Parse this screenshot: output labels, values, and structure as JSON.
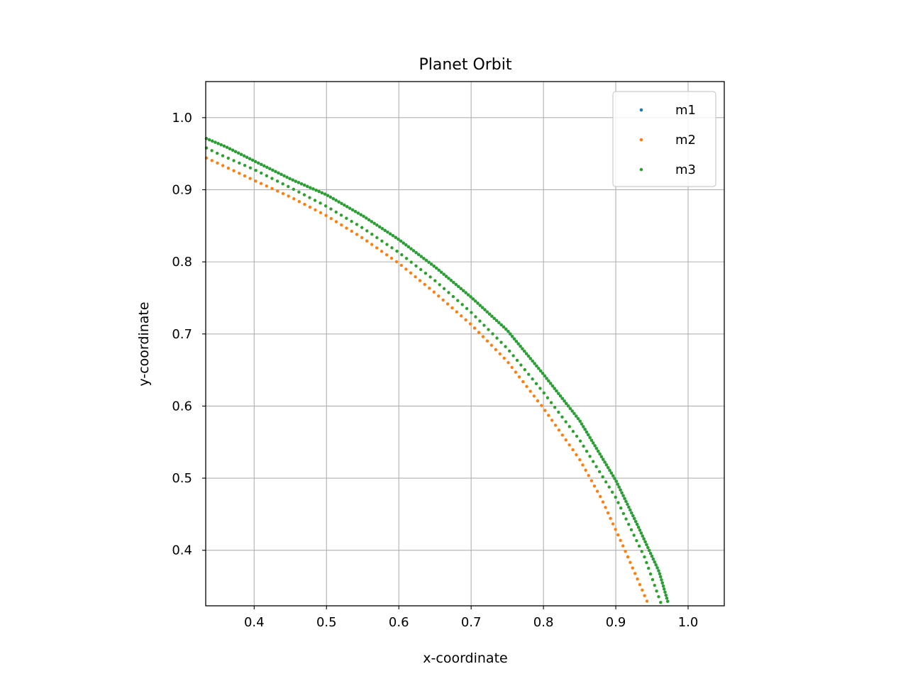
{
  "chart_data": {
    "type": "scatter",
    "title": "Planet Orbit",
    "xlabel": "x-coordinate",
    "ylabel": "y-coordinate",
    "xlim": [
      0.333,
      1.05
    ],
    "ylim": [
      0.323,
      1.05
    ],
    "xticks": [
      0.4,
      0.5,
      0.6,
      0.7,
      0.8,
      0.9,
      1.0
    ],
    "yticks": [
      0.4,
      0.5,
      0.6,
      0.7,
      0.8,
      0.9,
      1.0
    ],
    "grid": true,
    "legend_position": "top-right",
    "series": [
      {
        "name": "m1",
        "color": "#1f77b4",
        "x": [
          0.334,
          0.36,
          0.4,
          0.45,
          0.5,
          0.55,
          0.6,
          0.65,
          0.7,
          0.75,
          0.8,
          0.85,
          0.9,
          0.93,
          0.96,
          0.973
        ],
        "y": [
          0.971,
          0.96,
          0.94,
          0.915,
          0.893,
          0.864,
          0.831,
          0.793,
          0.751,
          0.705,
          0.644,
          0.58,
          0.497,
          0.435,
          0.37,
          0.325
        ]
      },
      {
        "name": "m2",
        "color": "#ff7f0e",
        "x": [
          0.334,
          0.36,
          0.4,
          0.45,
          0.5,
          0.55,
          0.6,
          0.65,
          0.7,
          0.75,
          0.8,
          0.85,
          0.88,
          0.91,
          0.93,
          0.945
        ],
        "y": [
          0.944,
          0.932,
          0.913,
          0.89,
          0.864,
          0.833,
          0.798,
          0.757,
          0.713,
          0.662,
          0.597,
          0.526,
          0.472,
          0.406,
          0.36,
          0.325
        ]
      },
      {
        "name": "m3",
        "color": "#2ca02c",
        "x": [
          0.334,
          0.36,
          0.4,
          0.45,
          0.5,
          0.55,
          0.6,
          0.65,
          0.7,
          0.75,
          0.8,
          0.85,
          0.9,
          0.93,
          0.96,
          0.973
        ],
        "y": [
          0.971,
          0.96,
          0.94,
          0.915,
          0.893,
          0.864,
          0.831,
          0.793,
          0.751,
          0.705,
          0.644,
          0.58,
          0.497,
          0.435,
          0.37,
          0.325
        ]
      },
      {
        "name": "m3",
        "color": "#2ca02c",
        "x": [
          0.334,
          0.35,
          0.4,
          0.45,
          0.5,
          0.55,
          0.6,
          0.65,
          0.7,
          0.75,
          0.8,
          0.85,
          0.9,
          0.94,
          0.963
        ],
        "y": [
          0.958,
          0.95,
          0.928,
          0.903,
          0.877,
          0.847,
          0.813,
          0.774,
          0.73,
          0.68,
          0.619,
          0.553,
          0.473,
          0.39,
          0.325
        ]
      }
    ]
  },
  "legend": {
    "items": [
      {
        "label": "m1",
        "color": "#1f77b4"
      },
      {
        "label": "m2",
        "color": "#ff7f0e"
      },
      {
        "label": "m3",
        "color": "#2ca02c"
      }
    ]
  }
}
